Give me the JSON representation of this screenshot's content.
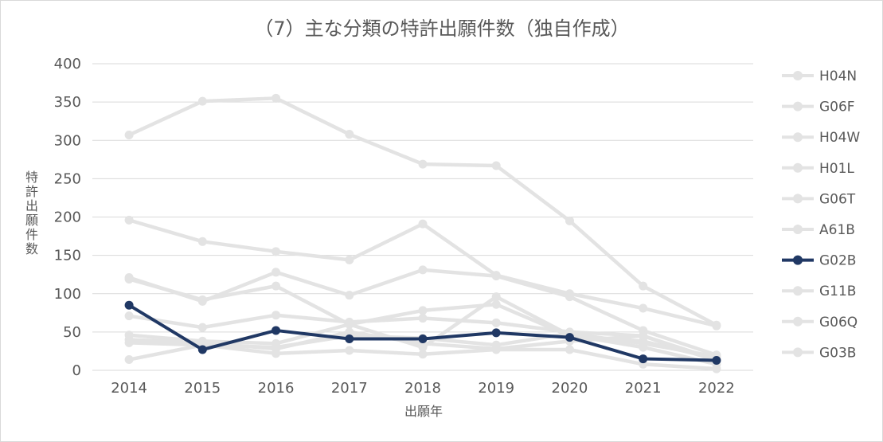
{
  "chart_data": {
    "type": "line",
    "title": "（7）主な分類の特許出願件数（独自作成）",
    "xlabel": "出願年",
    "ylabel": "特許出願件数",
    "x": [
      "2014",
      "2015",
      "2016",
      "2017",
      "2018",
      "2019",
      "2020",
      "2021",
      "2022"
    ],
    "ylim": [
      0,
      400
    ],
    "yticks": [
      0,
      50,
      100,
      150,
      200,
      250,
      300,
      350,
      400
    ],
    "grid": true,
    "legend_position": "right",
    "series": [
      {
        "name": "H04N",
        "color": "#e3e3e3",
        "highlight": false,
        "values": [
          307,
          351,
          355,
          308,
          269,
          267,
          195,
          110,
          59
        ]
      },
      {
        "name": "G06F",
        "color": "#e3e3e3",
        "highlight": false,
        "values": [
          196,
          168,
          155,
          144,
          191,
          124,
          100,
          81,
          58
        ]
      },
      {
        "name": "H04W",
        "color": "#e3e3e3",
        "highlight": false,
        "values": [
          121,
          90,
          128,
          98,
          131,
          123,
          96,
          52,
          20
        ]
      },
      {
        "name": "H01L",
        "color": "#e3e3e3",
        "highlight": false,
        "values": [
          119,
          92,
          110,
          60,
          78,
          86,
          45,
          38,
          15
        ]
      },
      {
        "name": "G06T",
        "color": "#e3e3e3",
        "highlight": false,
        "values": [
          71,
          56,
          72,
          63,
          68,
          62,
          50,
          45,
          12
        ]
      },
      {
        "name": "A61B",
        "color": "#e3e3e3",
        "highlight": false,
        "values": [
          46,
          38,
          35,
          60,
          30,
          96,
          46,
          30,
          8
        ]
      },
      {
        "name": "G02B",
        "color": "#203864",
        "highlight": true,
        "values": [
          85,
          27,
          52,
          41,
          41,
          49,
          43,
          15,
          13
        ]
      },
      {
        "name": "G11B",
        "color": "#e3e3e3",
        "highlight": false,
        "values": [
          14,
          33,
          30,
          45,
          42,
          33,
          48,
          35,
          18
        ]
      },
      {
        "name": "G06Q",
        "color": "#e3e3e3",
        "highlight": false,
        "values": [
          40,
          36,
          28,
          50,
          35,
          28,
          38,
          45,
          14
        ]
      },
      {
        "name": "G03B",
        "color": "#e3e3e3",
        "highlight": false,
        "values": [
          36,
          33,
          22,
          26,
          21,
          27,
          27,
          8,
          2
        ]
      }
    ]
  }
}
